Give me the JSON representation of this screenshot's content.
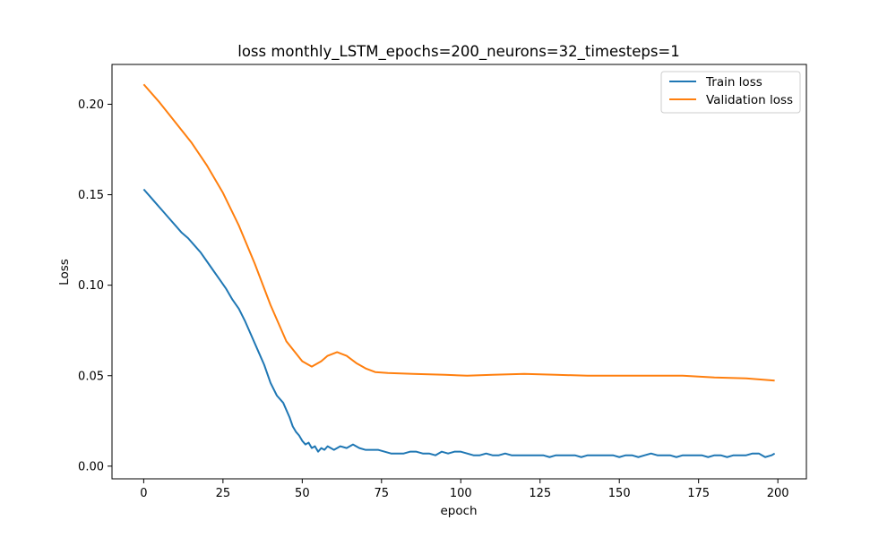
{
  "chart_data": {
    "type": "line",
    "title": "loss monthly_LSTM_epochs=200_neurons=32_timesteps=1",
    "xlabel": "epoch",
    "ylabel": "Loss",
    "xlim": [
      -10,
      209
    ],
    "ylim": [
      -0.007,
      0.222
    ],
    "x_ticks": [
      0,
      25,
      50,
      75,
      100,
      125,
      150,
      175,
      200
    ],
    "y_ticks": [
      0.0,
      0.05,
      0.1,
      0.15,
      0.2
    ],
    "y_tick_labels": [
      "0.00",
      "0.05",
      "0.10",
      "0.15",
      "0.20"
    ],
    "grid": false,
    "legend_position": "top-right",
    "series": [
      {
        "name": "Train loss",
        "color": "#1f77b4",
        "points": [
          [
            0,
            0.153
          ],
          [
            2,
            0.149
          ],
          [
            4,
            0.145
          ],
          [
            6,
            0.141
          ],
          [
            8,
            0.137
          ],
          [
            10,
            0.133
          ],
          [
            12,
            0.129
          ],
          [
            14,
            0.126
          ],
          [
            16,
            0.122
          ],
          [
            18,
            0.118
          ],
          [
            20,
            0.113
          ],
          [
            22,
            0.108
          ],
          [
            24,
            0.103
          ],
          [
            26,
            0.098
          ],
          [
            28,
            0.092
          ],
          [
            30,
            0.087
          ],
          [
            32,
            0.08
          ],
          [
            34,
            0.072
          ],
          [
            36,
            0.064
          ],
          [
            38,
            0.056
          ],
          [
            40,
            0.046
          ],
          [
            42,
            0.039
          ],
          [
            44,
            0.035
          ],
          [
            46,
            0.027
          ],
          [
            47,
            0.022
          ],
          [
            48,
            0.019
          ],
          [
            49,
            0.017
          ],
          [
            50,
            0.014
          ],
          [
            51,
            0.012
          ],
          [
            52,
            0.013
          ],
          [
            53,
            0.01
          ],
          [
            54,
            0.011
          ],
          [
            55,
            0.008
          ],
          [
            56,
            0.01
          ],
          [
            57,
            0.009
          ],
          [
            58,
            0.011
          ],
          [
            59,
            0.01
          ],
          [
            60,
            0.009
          ],
          [
            62,
            0.011
          ],
          [
            64,
            0.01
          ],
          [
            66,
            0.012
          ],
          [
            68,
            0.01
          ],
          [
            70,
            0.009
          ],
          [
            72,
            0.009
          ],
          [
            74,
            0.009
          ],
          [
            76,
            0.008
          ],
          [
            78,
            0.007
          ],
          [
            80,
            0.007
          ],
          [
            82,
            0.007
          ],
          [
            84,
            0.008
          ],
          [
            86,
            0.008
          ],
          [
            88,
            0.007
          ],
          [
            90,
            0.007
          ],
          [
            92,
            0.006
          ],
          [
            94,
            0.008
          ],
          [
            96,
            0.007
          ],
          [
            98,
            0.008
          ],
          [
            100,
            0.008
          ],
          [
            102,
            0.007
          ],
          [
            104,
            0.006
          ],
          [
            106,
            0.006
          ],
          [
            108,
            0.007
          ],
          [
            110,
            0.006
          ],
          [
            112,
            0.006
          ],
          [
            114,
            0.007
          ],
          [
            116,
            0.006
          ],
          [
            118,
            0.006
          ],
          [
            120,
            0.006
          ],
          [
            122,
            0.006
          ],
          [
            124,
            0.006
          ],
          [
            126,
            0.006
          ],
          [
            128,
            0.005
          ],
          [
            130,
            0.006
          ],
          [
            132,
            0.006
          ],
          [
            134,
            0.006
          ],
          [
            136,
            0.006
          ],
          [
            138,
            0.005
          ],
          [
            140,
            0.006
          ],
          [
            142,
            0.006
          ],
          [
            144,
            0.006
          ],
          [
            146,
            0.006
          ],
          [
            148,
            0.006
          ],
          [
            150,
            0.005
          ],
          [
            152,
            0.006
          ],
          [
            154,
            0.006
          ],
          [
            156,
            0.005
          ],
          [
            158,
            0.006
          ],
          [
            160,
            0.007
          ],
          [
            162,
            0.006
          ],
          [
            164,
            0.006
          ],
          [
            166,
            0.006
          ],
          [
            168,
            0.005
          ],
          [
            170,
            0.006
          ],
          [
            172,
            0.006
          ],
          [
            174,
            0.006
          ],
          [
            176,
            0.006
          ],
          [
            178,
            0.005
          ],
          [
            180,
            0.006
          ],
          [
            182,
            0.006
          ],
          [
            184,
            0.005
          ],
          [
            186,
            0.006
          ],
          [
            188,
            0.006
          ],
          [
            190,
            0.006
          ],
          [
            192,
            0.007
          ],
          [
            194,
            0.007
          ],
          [
            196,
            0.005
          ],
          [
            198,
            0.006
          ],
          [
            199,
            0.007
          ]
        ]
      },
      {
        "name": "Validation loss",
        "color": "#ff7f0e",
        "points": [
          [
            0,
            0.211
          ],
          [
            5,
            0.201
          ],
          [
            10,
            0.19
          ],
          [
            15,
            0.179
          ],
          [
            20,
            0.166
          ],
          [
            25,
            0.151
          ],
          [
            30,
            0.133
          ],
          [
            35,
            0.112
          ],
          [
            40,
            0.089
          ],
          [
            45,
            0.069
          ],
          [
            50,
            0.058
          ],
          [
            53,
            0.055
          ],
          [
            56,
            0.058
          ],
          [
            58,
            0.061
          ],
          [
            61,
            0.063
          ],
          [
            64,
            0.061
          ],
          [
            67,
            0.057
          ],
          [
            70,
            0.054
          ],
          [
            73,
            0.052
          ],
          [
            77,
            0.0515
          ],
          [
            85,
            0.051
          ],
          [
            95,
            0.0505
          ],
          [
            102,
            0.05
          ],
          [
            110,
            0.0505
          ],
          [
            120,
            0.051
          ],
          [
            130,
            0.0505
          ],
          [
            140,
            0.05
          ],
          [
            150,
            0.05
          ],
          [
            160,
            0.05
          ],
          [
            170,
            0.05
          ],
          [
            180,
            0.049
          ],
          [
            190,
            0.0485
          ],
          [
            199,
            0.0473
          ]
        ]
      }
    ]
  }
}
